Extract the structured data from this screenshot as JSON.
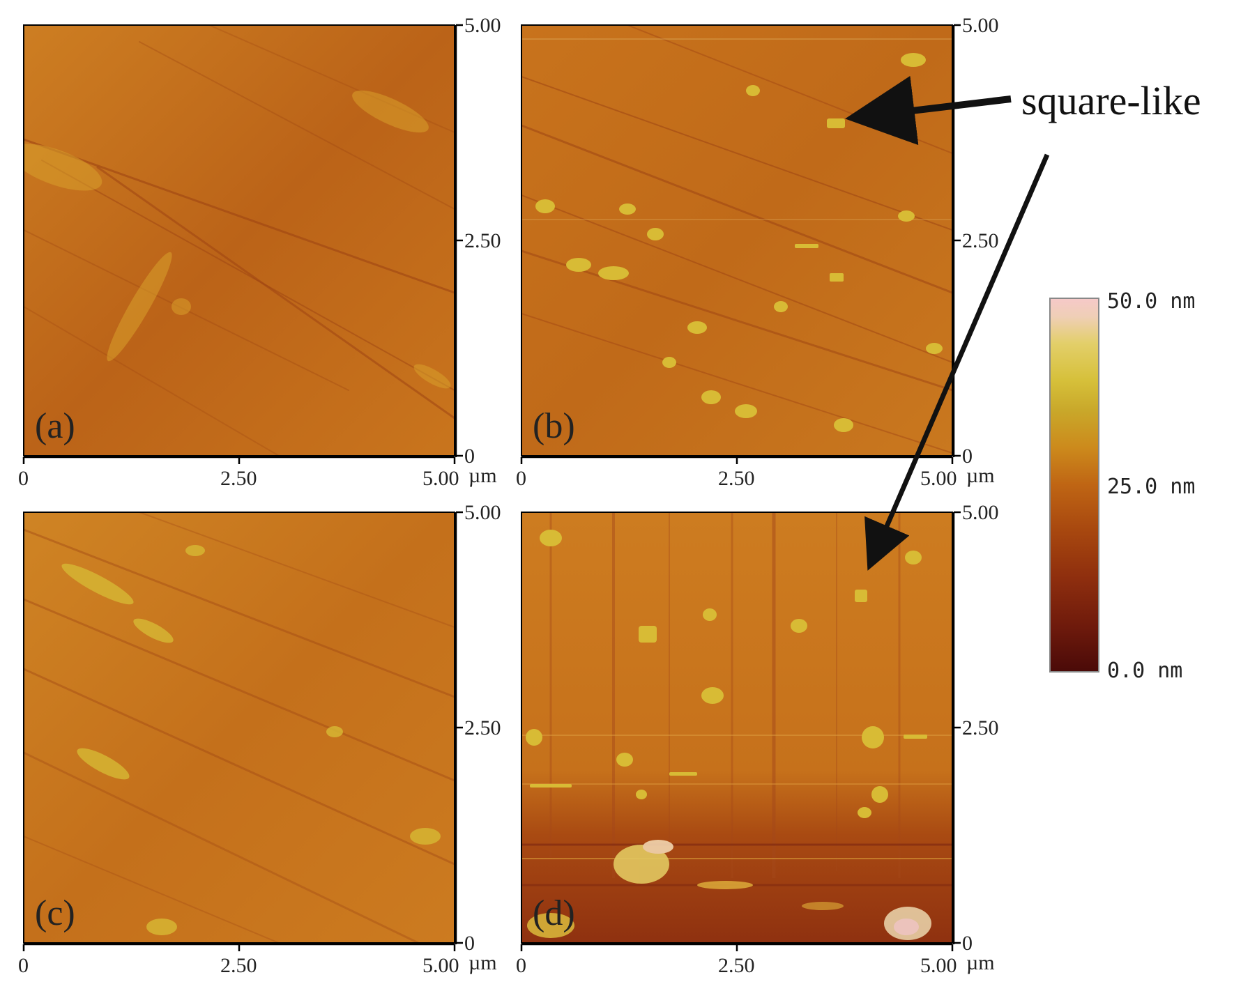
{
  "panels": [
    {
      "key": "a",
      "label": "(a)",
      "surface": "smooth-striated",
      "features": []
    },
    {
      "key": "b",
      "label": "(b)",
      "surface": "striated-with-grains",
      "features": [
        "square-like grains"
      ]
    },
    {
      "key": "c",
      "label": "(c)",
      "surface": "striated-with-elongated-grains",
      "features": []
    },
    {
      "key": "d",
      "label": "(d)",
      "surface": "vertical-streaks-with-grains",
      "features": [
        "square-like grains"
      ]
    }
  ],
  "axes": {
    "x_ticks": [
      "0",
      "2.50",
      "5.00"
    ],
    "y_ticks": [
      "0",
      "2.50",
      "5.00"
    ],
    "unit": "µm"
  },
  "annotation": {
    "text": "square-like"
  },
  "colorbar": {
    "max_label": "50.0 nm",
    "mid_label": "25.0 nm",
    "min_label": "0.0 nm",
    "stops": [
      "#4a0a08",
      "#6e1a0c",
      "#8e2e0e",
      "#a8480f",
      "#bf6514",
      "#cc8a1c",
      "#c9a82a",
      "#d6c03a",
      "#e3cf6a",
      "#efcfb6",
      "#f6c9c9"
    ]
  },
  "colors": {
    "surface_base": "#c8741d",
    "surface_dark": "#9a3f12",
    "surface_light": "#d69a2a",
    "grain": "#d8bb35",
    "arrow": "#111111"
  }
}
